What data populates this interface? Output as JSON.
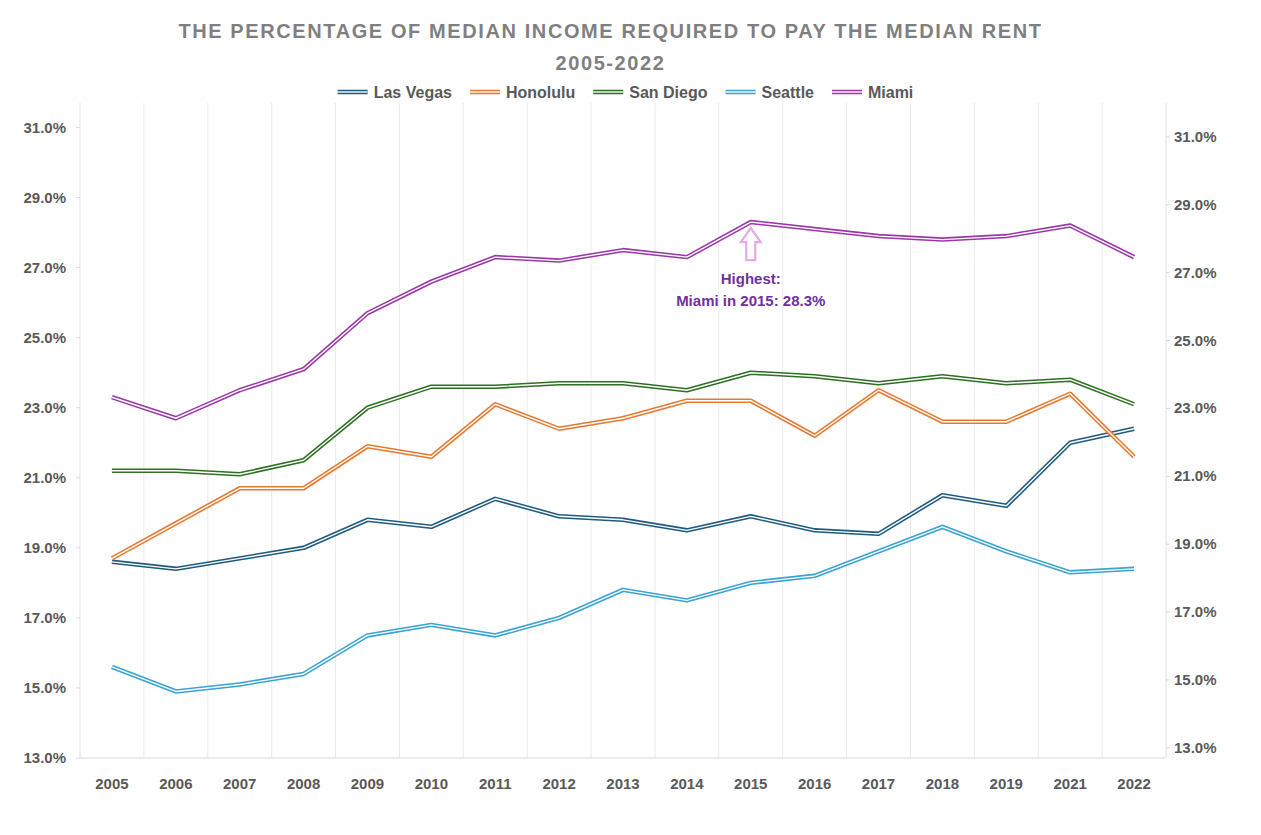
{
  "chart_data": {
    "type": "line",
    "title": "THE PERCENTAGE OF MEDIAN INCOME REQUIRED TO PAY THE MEDIAN RENT",
    "subtitle": "2005-2022",
    "categories": [
      "2005",
      "2006",
      "2007",
      "2008",
      "2009",
      "2010",
      "2011",
      "2012",
      "2013",
      "2014",
      "2015",
      "2016",
      "2017",
      "2018",
      "2019",
      "2021",
      "2022"
    ],
    "series": [
      {
        "name": "Las Vegas",
        "color": "#1f5b7e",
        "line_style": "double",
        "values": [
          18.6,
          18.4,
          18.7,
          19.0,
          19.8,
          19.6,
          20.4,
          19.9,
          19.8,
          19.5,
          19.9,
          19.5,
          19.4,
          20.5,
          20.2,
          22.0,
          22.4
        ]
      },
      {
        "name": "Honolulu",
        "color": "#e8782f",
        "line_style": "double",
        "values": [
          18.7,
          19.7,
          20.7,
          20.7,
          21.9,
          21.6,
          23.1,
          22.4,
          22.7,
          23.2,
          23.2,
          22.2,
          23.5,
          22.6,
          22.6,
          23.4,
          21.6
        ]
      },
      {
        "name": "San Diego",
        "color": "#2f6f24",
        "line_style": "double",
        "values": [
          21.2,
          21.2,
          21.1,
          21.5,
          23.0,
          23.6,
          23.6,
          23.7,
          23.7,
          23.5,
          24.0,
          23.9,
          23.7,
          23.9,
          23.7,
          23.8,
          23.1
        ]
      },
      {
        "name": "Seattle",
        "color": "#3aa3d2",
        "line_style": "double",
        "values": [
          15.6,
          14.9,
          15.1,
          15.4,
          16.5,
          16.8,
          16.5,
          17.0,
          17.8,
          17.5,
          18.0,
          18.2,
          18.9,
          19.6,
          18.9,
          18.3,
          18.4
        ]
      },
      {
        "name": "Miami",
        "color": "#9a38a8",
        "line_style": "double",
        "values": [
          23.3,
          22.7,
          23.5,
          24.1,
          25.7,
          26.6,
          27.3,
          27.2,
          27.5,
          27.3,
          28.3,
          28.1,
          27.9,
          27.8,
          27.9,
          28.2,
          27.3
        ]
      }
    ],
    "ylim": [
      13,
      31.7
    ],
    "yticks": [
      {
        "value": 13,
        "label": "13.0%"
      },
      {
        "value": 15,
        "label": "15.0%"
      },
      {
        "value": 17,
        "label": "17.0%"
      },
      {
        "value": 19,
        "label": "19.0%"
      },
      {
        "value": 21,
        "label": "21.0%"
      },
      {
        "value": 23,
        "label": "23.0%"
      },
      {
        "value": 25,
        "label": "25.0%"
      },
      {
        "value": 27,
        "label": "27.0%"
      },
      {
        "value": 29,
        "label": "29.0%"
      },
      {
        "value": 31,
        "label": "31.0%"
      }
    ],
    "y2lim": [
      12.7,
      32.0
    ],
    "y2ticks": [
      {
        "value": 13,
        "label": "13.0%"
      },
      {
        "value": 15,
        "label": "15.0%"
      },
      {
        "value": 17,
        "label": "17.0%"
      },
      {
        "value": 19,
        "label": "19.0%"
      },
      {
        "value": 21,
        "label": "21.0%"
      },
      {
        "value": 23,
        "label": "23.0%"
      },
      {
        "value": 25,
        "label": "25.0%"
      },
      {
        "value": 27,
        "label": "27.0%"
      },
      {
        "value": 29,
        "label": "29.0%"
      },
      {
        "value": 31,
        "label": "31.0%"
      }
    ],
    "grid": "x",
    "legend": "top",
    "annotations": [
      {
        "text": [
          "Highest:",
          "Miami in 2015: 28.3%"
        ],
        "x": "2015",
        "y": 28.3,
        "color": "#7030a0"
      }
    ]
  }
}
